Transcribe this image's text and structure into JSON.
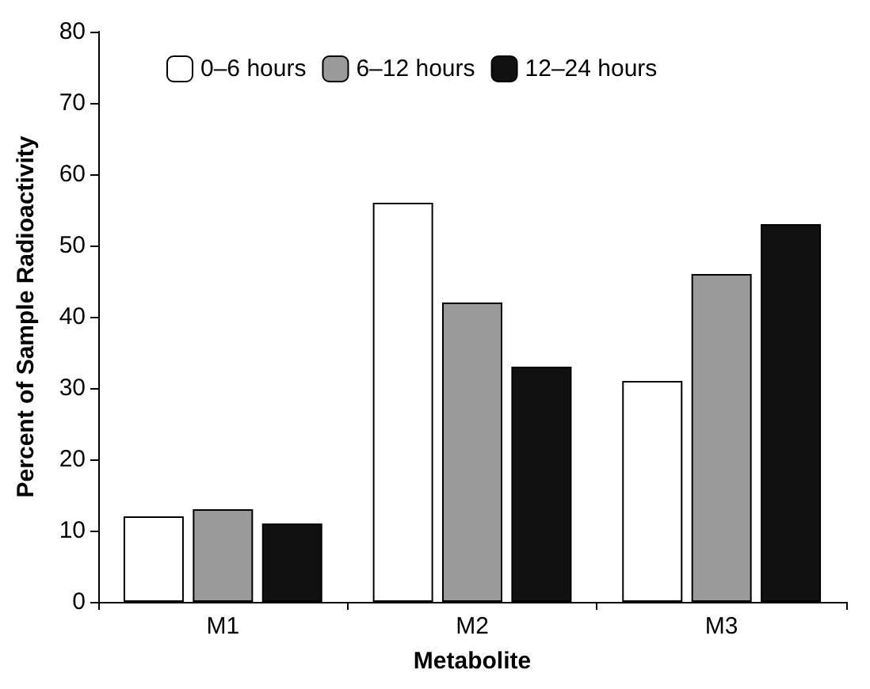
{
  "chart_data": {
    "type": "bar",
    "xlabel": "Metabolite",
    "ylabel": "Percent of Sample Radioactivity",
    "categories": [
      "M1",
      "M2",
      "M3"
    ],
    "series": [
      {
        "name": "0–6 hours",
        "color": "#ffffff",
        "values": [
          12,
          56,
          31
        ]
      },
      {
        "name": "6–12 hours",
        "color": "#9a9a9a",
        "values": [
          13,
          42,
          46
        ]
      },
      {
        "name": "12–24 hours",
        "color": "#111111",
        "values": [
          11,
          33,
          53
        ]
      }
    ],
    "ylim": [
      0,
      80
    ],
    "yticks": [
      0,
      10,
      20,
      30,
      40,
      50,
      60,
      70,
      80
    ],
    "grid": false,
    "legend": "top left"
  }
}
